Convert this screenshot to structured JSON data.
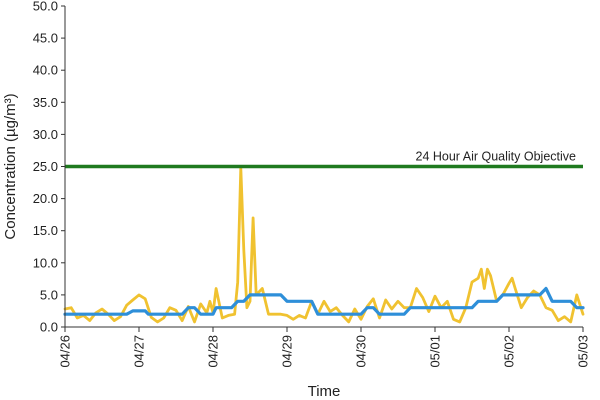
{
  "chart_data": {
    "type": "line",
    "title": "",
    "xlabel": "Time",
    "ylabel": "Concentration (µg/m³)",
    "ylim": [
      0,
      50
    ],
    "yticks": [
      "0.0",
      "5.0",
      "10.0",
      "15.0",
      "20.0",
      "25.0",
      "30.0",
      "35.0",
      "40.0",
      "45.0",
      "50.0"
    ],
    "xlim": [
      "04/26 00:00",
      "05/03 00:00"
    ],
    "xticks": [
      "04/26",
      "04/27",
      "04/28",
      "04/29",
      "04/30",
      "05/01",
      "05/02",
      "05/03"
    ],
    "grid": false,
    "legend": "none",
    "reference_line": {
      "label": "24 Hour Air Quality Objective",
      "value": 25,
      "color": "#1f7a1f"
    },
    "series": [
      {
        "color": "#f0c230",
        "points": [
          [
            "04/26 00:00",
            2.8
          ],
          [
            "04/26 02:00",
            3.0
          ],
          [
            "04/26 04:00",
            1.4
          ],
          [
            "04/26 06:00",
            1.8
          ],
          [
            "04/26 08:00",
            1.0
          ],
          [
            "04/26 10:00",
            2.2
          ],
          [
            "04/26 12:00",
            2.8
          ],
          [
            "04/26 14:00",
            2.0
          ],
          [
            "04/26 16:00",
            1.0
          ],
          [
            "04/26 18:00",
            1.6
          ],
          [
            "04/26 20:00",
            3.4
          ],
          [
            "04/26 22:00",
            4.2
          ],
          [
            "04/27 00:00",
            5.0
          ],
          [
            "04/27 02:00",
            4.4
          ],
          [
            "04/27 04:00",
            1.5
          ],
          [
            "04/27 06:00",
            0.8
          ],
          [
            "04/27 08:00",
            1.4
          ],
          [
            "04/27 10:00",
            3.0
          ],
          [
            "04/27 12:00",
            2.6
          ],
          [
            "04/27 14:00",
            1.0
          ],
          [
            "04/27 16:00",
            3.2
          ],
          [
            "04/27 18:00",
            0.8
          ],
          [
            "04/27 20:00",
            3.6
          ],
          [
            "04/27 22:00",
            2.2
          ],
          [
            "04/27 23:00",
            4.0
          ],
          [
            "04/28 00:00",
            2.2
          ],
          [
            "04/28 01:00",
            6.0
          ],
          [
            "04/28 03:00",
            1.4
          ],
          [
            "04/28 05:00",
            1.8
          ],
          [
            "04/28 07:00",
            2.0
          ],
          [
            "04/28 08:00",
            7.0
          ],
          [
            "04/28 09:00",
            24.8
          ],
          [
            "04/28 10:00",
            12.0
          ],
          [
            "04/28 11:00",
            3.0
          ],
          [
            "04/28 12:00",
            4.0
          ],
          [
            "04/28 13:00",
            17.0
          ],
          [
            "04/28 14:00",
            5.0
          ],
          [
            "04/28 16:00",
            6.0
          ],
          [
            "04/28 18:00",
            2.0
          ],
          [
            "04/28 22:00",
            2.0
          ],
          [
            "04/29 00:00",
            1.8
          ],
          [
            "04/29 02:00",
            1.2
          ],
          [
            "04/29 04:00",
            1.8
          ],
          [
            "04/29 06:00",
            1.4
          ],
          [
            "04/29 08:00",
            4.0
          ],
          [
            "04/29 10:00",
            2.0
          ],
          [
            "04/29 12:00",
            4.0
          ],
          [
            "04/29 14:00",
            2.4
          ],
          [
            "04/29 16:00",
            3.0
          ],
          [
            "04/29 18:00",
            1.8
          ],
          [
            "04/29 20:00",
            0.8
          ],
          [
            "04/29 22:00",
            2.8
          ],
          [
            "04/30 00:00",
            1.2
          ],
          [
            "04/30 02:00",
            3.2
          ],
          [
            "04/30 04:00",
            4.4
          ],
          [
            "04/30 06:00",
            1.4
          ],
          [
            "04/30 08:00",
            4.2
          ],
          [
            "04/30 10:00",
            2.8
          ],
          [
            "04/30 12:00",
            4.0
          ],
          [
            "04/30 14:00",
            3.0
          ],
          [
            "04/30 16:00",
            3.0
          ],
          [
            "04/30 18:00",
            6.0
          ],
          [
            "04/30 20:00",
            4.6
          ],
          [
            "04/30 22:00",
            2.4
          ],
          [
            "05/01 00:00",
            4.8
          ],
          [
            "05/01 02:00",
            3.0
          ],
          [
            "05/01 04:00",
            4.0
          ],
          [
            "05/01 06:00",
            1.2
          ],
          [
            "05/01 08:00",
            0.8
          ],
          [
            "05/01 10:00",
            3.0
          ],
          [
            "05/01 12:00",
            7.0
          ],
          [
            "05/01 14:00",
            7.6
          ],
          [
            "05/01 15:00",
            9.0
          ],
          [
            "05/01 16:00",
            6.0
          ],
          [
            "05/01 17:00",
            9.0
          ],
          [
            "05/01 18:00",
            8.0
          ],
          [
            "05/01 20:00",
            4.0
          ],
          [
            "05/01 22:00",
            5.0
          ],
          [
            "05/02 00:00",
            6.8
          ],
          [
            "05/02 01:00",
            7.6
          ],
          [
            "05/02 02:00",
            6.0
          ],
          [
            "05/02 04:00",
            3.0
          ],
          [
            "05/02 06:00",
            4.6
          ],
          [
            "05/02 08:00",
            5.6
          ],
          [
            "05/02 10:00",
            5.0
          ],
          [
            "05/02 12:00",
            3.0
          ],
          [
            "05/02 14:00",
            2.6
          ],
          [
            "05/02 16:00",
            1.0
          ],
          [
            "05/02 18:00",
            1.6
          ],
          [
            "05/02 20:00",
            0.8
          ],
          [
            "05/02 22:00",
            5.0
          ],
          [
            "05/03 00:00",
            2.0
          ]
        ]
      },
      {
        "color": "#2e8fd9",
        "points": [
          [
            "04/26 00:00",
            2.0
          ],
          [
            "04/26 10:00",
            2.0
          ],
          [
            "04/26 12:00",
            2.0
          ],
          [
            "04/26 20:00",
            2.0
          ],
          [
            "04/26 22:00",
            2.5
          ],
          [
            "04/27 00:00",
            2.5
          ],
          [
            "04/27 02:00",
            2.5
          ],
          [
            "04/27 03:00",
            2.0
          ],
          [
            "04/27 10:00",
            2.0
          ],
          [
            "04/27 14:00",
            2.0
          ],
          [
            "04/27 16:00",
            3.0
          ],
          [
            "04/27 18:00",
            3.0
          ],
          [
            "04/27 20:00",
            2.0
          ],
          [
            "04/28 00:00",
            2.0
          ],
          [
            "04/28 01:00",
            3.0
          ],
          [
            "04/28 06:00",
            3.0
          ],
          [
            "04/28 08:00",
            4.0
          ],
          [
            "04/28 10:00",
            4.0
          ],
          [
            "04/28 12:00",
            5.0
          ],
          [
            "04/28 22:00",
            5.0
          ],
          [
            "04/29 00:00",
            4.0
          ],
          [
            "04/29 08:00",
            4.0
          ],
          [
            "04/29 10:00",
            2.0
          ],
          [
            "04/29 14:00",
            2.0
          ],
          [
            "04/29 18:00",
            2.0
          ],
          [
            "04/30 00:00",
            2.0
          ],
          [
            "04/30 02:00",
            3.0
          ],
          [
            "04/30 04:00",
            3.0
          ],
          [
            "04/30 06:00",
            2.0
          ],
          [
            "04/30 14:00",
            2.0
          ],
          [
            "04/30 16:00",
            3.0
          ],
          [
            "05/01 00:00",
            3.0
          ],
          [
            "05/01 12:00",
            3.0
          ],
          [
            "05/01 14:00",
            4.0
          ],
          [
            "05/01 20:00",
            4.0
          ],
          [
            "05/01 22:00",
            5.0
          ],
          [
            "05/02 10:00",
            5.0
          ],
          [
            "05/02 12:00",
            6.0
          ],
          [
            "05/02 14:00",
            4.0
          ],
          [
            "05/02 20:00",
            4.0
          ],
          [
            "05/02 22:00",
            3.0
          ],
          [
            "05/03 00:00",
            3.0
          ]
        ]
      }
    ]
  }
}
